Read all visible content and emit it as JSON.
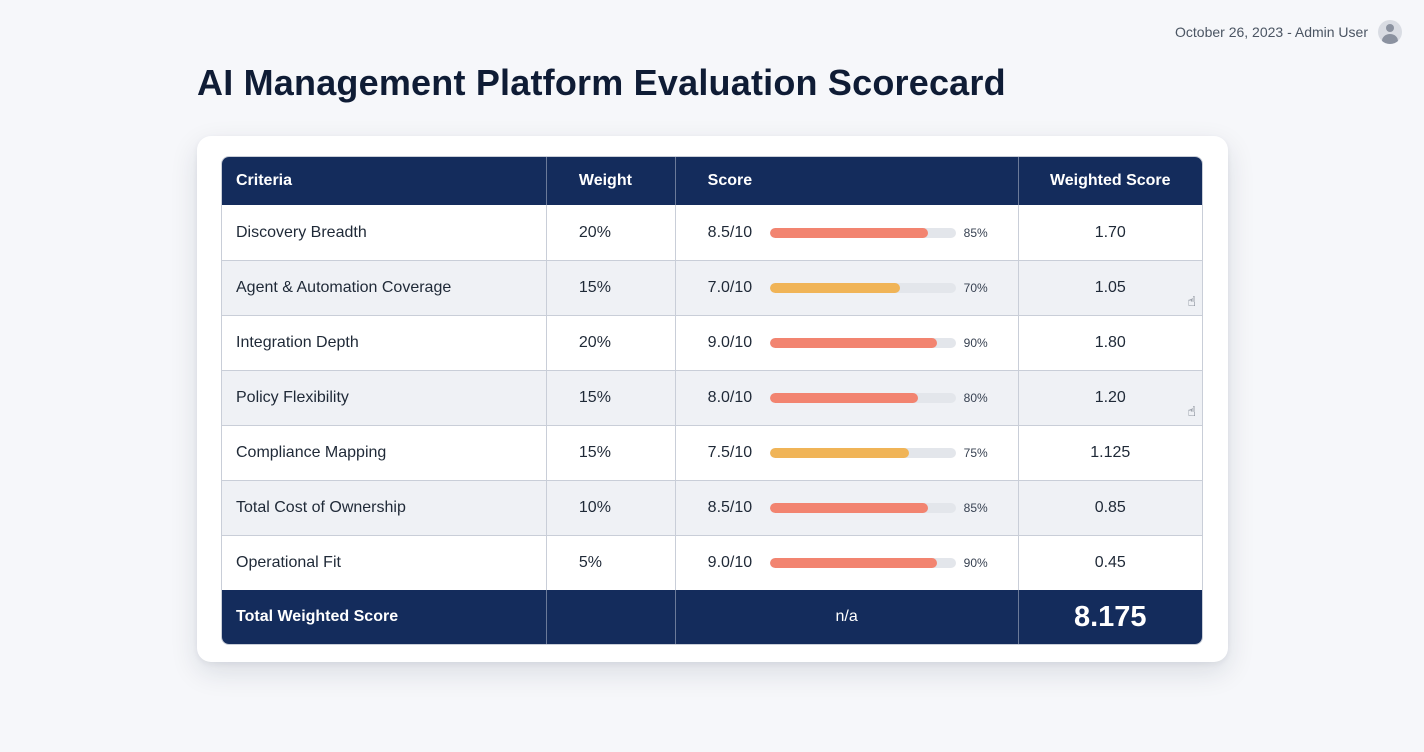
{
  "header": {
    "meta_text": "October 26, 2023 - Admin User",
    "avatar_icon": "user-avatar-icon"
  },
  "title": "AI Management Platform Evaluation Scorecard",
  "table": {
    "columns": {
      "criteria": "Criteria",
      "weight": "Weight",
      "score": "Score",
      "weighted": "Weighted Score"
    },
    "colors": {
      "header_bg": "#142c5c",
      "bar_high": "#f28470",
      "bar_mid": "#f0b457",
      "bar_track": "#e3e6eb"
    },
    "rows": [
      {
        "criteria": "Discovery Breadth",
        "weight": "20%",
        "score": "8.5/10",
        "pct": "85%",
        "fraction": 0.85,
        "level": "high",
        "weighted": "1.70",
        "cursor": false
      },
      {
        "criteria": "Agent & Automation Coverage",
        "weight": "15%",
        "score": "7.0/10",
        "pct": "70%",
        "fraction": 0.7,
        "level": "mid",
        "weighted": "1.05",
        "cursor": true
      },
      {
        "criteria": "Integration Depth",
        "weight": "20%",
        "score": "9.0/10",
        "pct": "90%",
        "fraction": 0.9,
        "level": "high",
        "weighted": "1.80",
        "cursor": false
      },
      {
        "criteria": "Policy Flexibility",
        "weight": "15%",
        "score": "8.0/10",
        "pct": "80%",
        "fraction": 0.8,
        "level": "high",
        "weighted": "1.20",
        "cursor": true
      },
      {
        "criteria": "Compliance Mapping",
        "weight": "15%",
        "score": "7.5/10",
        "pct": "75%",
        "fraction": 0.75,
        "level": "mid",
        "weighted": "1.125",
        "cursor": false
      },
      {
        "criteria": "Total Cost of Ownership",
        "weight": "10%",
        "score": "8.5/10",
        "pct": "85%",
        "fraction": 0.85,
        "level": "high",
        "weighted": "0.85",
        "cursor": false
      },
      {
        "criteria": "Operational Fit",
        "weight": "5%",
        "score": "9.0/10",
        "pct": "90%",
        "fraction": 0.9,
        "level": "high",
        "weighted": "0.45",
        "cursor": false
      }
    ],
    "footer": {
      "label": "Total Weighted Score",
      "weight": "",
      "score": "n/a",
      "total": "8.175"
    }
  }
}
